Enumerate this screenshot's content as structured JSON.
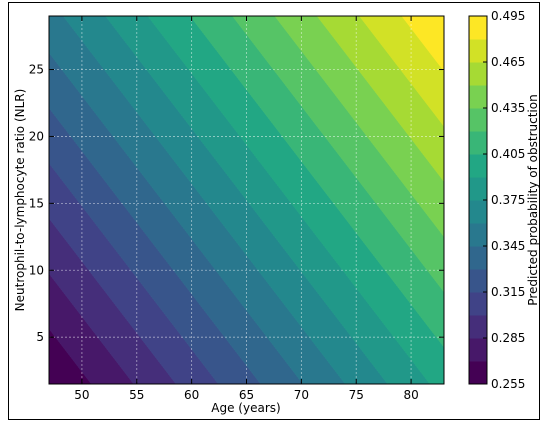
{
  "chart_data": {
    "type": "heatmap",
    "title": "",
    "xlabel": "Age (years)",
    "ylabel": "Neutrophil-to-lymphocyte ratio (NLR)",
    "colorbar_label": "Predicted probability of obstruction",
    "xlim": [
      47,
      83
    ],
    "ylim": [
      1.5,
      29
    ],
    "x_ticks": [
      50,
      55,
      60,
      65,
      70,
      75,
      80
    ],
    "y_ticks": [
      5,
      10,
      15,
      20,
      25
    ],
    "colorbar_ticks": [
      "0.255",
      "0.285",
      "0.315",
      "0.345",
      "0.375",
      "0.405",
      "0.435",
      "0.465",
      "0.495"
    ],
    "levels": [
      0.255,
      0.27,
      0.285,
      0.3,
      0.315,
      0.33,
      0.345,
      0.36,
      0.375,
      0.39,
      0.405,
      0.42,
      0.435,
      0.45,
      0.465,
      0.48,
      0.495
    ],
    "model": {
      "description_points": [
        {
          "age": 47,
          "nlr": 1.5,
          "p": 0.255
        },
        {
          "age": 83,
          "nlr": 1.5,
          "p": 0.395
        },
        {
          "age": 47,
          "nlr": 29,
          "p": 0.355
        },
        {
          "age": 83,
          "nlr": 29,
          "p": 0.495
        }
      ]
    },
    "colormap": "viridis",
    "grid": true
  }
}
